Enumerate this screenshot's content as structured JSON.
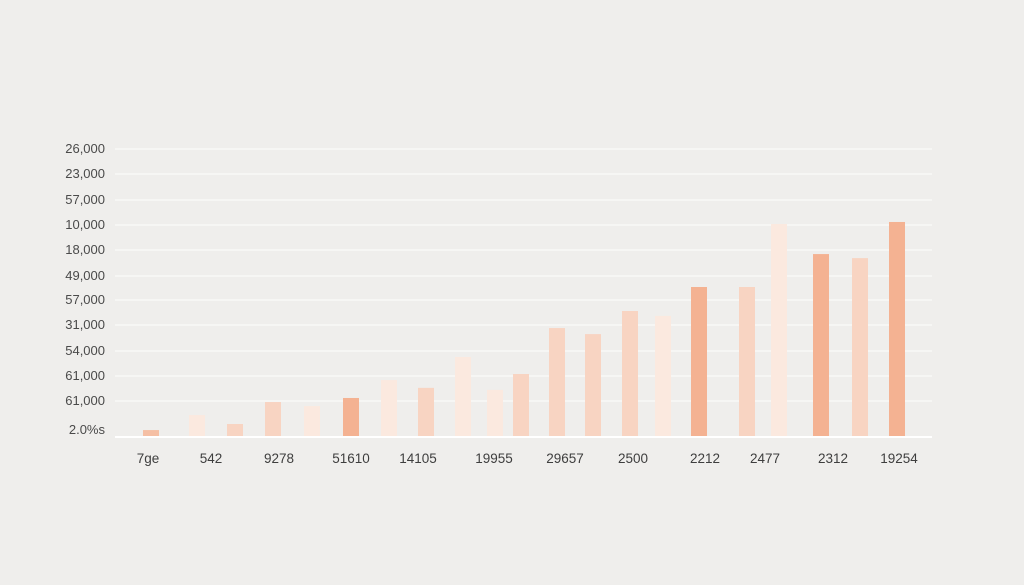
{
  "chart_data": {
    "type": "bar",
    "title": "",
    "xlabel": "",
    "ylabel": "",
    "ylim": [
      0,
      100
    ],
    "grid": true,
    "y_tick_labels": [
      "2.0%s",
      "61,000",
      "61,000",
      "54,000",
      "31,000",
      "57,000",
      "49,000",
      "18,000",
      "10,000",
      "57,000",
      "23,000",
      "26,000"
    ],
    "categories": [
      "7ge",
      "542",
      "9278",
      "51610",
      "14105",
      "19955",
      "29657",
      "2500",
      "2212",
      "2477",
      "2312",
      "19254"
    ],
    "bars": [
      {
        "value": 2.4,
        "shade": "mid"
      },
      {
        "value": 7.6,
        "shade": "pale"
      },
      {
        "value": 4.5,
        "shade": "light"
      },
      {
        "value": 12.1,
        "shade": "light"
      },
      {
        "value": 10.7,
        "shade": "pale"
      },
      {
        "value": 13.5,
        "shade": "strong"
      },
      {
        "value": 19.7,
        "shade": "pale"
      },
      {
        "value": 17.0,
        "shade": "light"
      },
      {
        "value": 27.7,
        "shade": "pale"
      },
      {
        "value": 16.3,
        "shade": "pale"
      },
      {
        "value": 21.8,
        "shade": "light"
      },
      {
        "value": 37.7,
        "shade": "light"
      },
      {
        "value": 35.6,
        "shade": "light"
      },
      {
        "value": 43.6,
        "shade": "light"
      },
      {
        "value": 41.9,
        "shade": "pale"
      },
      {
        "value": 51.9,
        "shade": "strong"
      },
      {
        "value": 51.9,
        "shade": "light"
      },
      {
        "value": 73.7,
        "shade": "pale"
      },
      {
        "value": 63.3,
        "shade": "strong"
      },
      {
        "value": 61.9,
        "shade": "light"
      },
      {
        "value": 74.4,
        "shade": "strong"
      }
    ],
    "colors": {
      "strong": "#f4b292",
      "mid": "#f5bfa4",
      "light": "#f8d4c2",
      "pale": "#fbe9df",
      "grid": "#f8f8f7",
      "axis": "#ffffff"
    }
  }
}
